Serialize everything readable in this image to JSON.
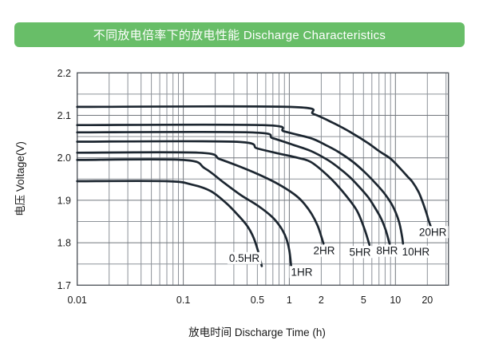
{
  "header": {
    "title": "不同放电倍率下的放电性能 Discharge Characteristics"
  },
  "chart_data": {
    "type": "line",
    "title": "不同放电倍率下的放电性能 Discharge Characteristics",
    "xlabel": "放电时间  Discharge Time (h)",
    "ylabel": "电压 Voltage(V)",
    "legend": "none (labels placed at curve ends)",
    "x_axis": {
      "scale": "log",
      "min": 0.01,
      "max": 31.62,
      "tick_labels": [
        {
          "v": 0.01,
          "t": "0.01"
        },
        {
          "v": 0.1,
          "t": "0.1"
        },
        {
          "v": 0.5,
          "t": "0.5"
        },
        {
          "v": 1,
          "t": "1"
        },
        {
          "v": 2,
          "t": "2"
        },
        {
          "v": 5,
          "t": "5"
        },
        {
          "v": 10,
          "t": "10"
        },
        {
          "v": 20,
          "t": "20"
        }
      ],
      "major_gridlines": [
        0.1,
        1,
        10
      ],
      "minor_gridlines": [
        0.02,
        0.03,
        0.04,
        0.05,
        0.06,
        0.07,
        0.08,
        0.09,
        0.2,
        0.3,
        0.4,
        0.5,
        0.6,
        0.7,
        0.8,
        0.9,
        2,
        3,
        4,
        5,
        6,
        7,
        8,
        9,
        20,
        30
      ]
    },
    "y_axis": {
      "scale": "linear",
      "min": 1.7,
      "max": 2.2,
      "tick_labels": [
        {
          "v": 2.2,
          "t": "2.2"
        },
        {
          "v": 2.1,
          "t": "2.1"
        },
        {
          "v": 2.0,
          "t": "2.0"
        },
        {
          "v": 1.9,
          "t": "1.9"
        },
        {
          "v": 1.8,
          "t": "1.8"
        },
        {
          "v": 1.7,
          "t": "1.7"
        }
      ],
      "major_gridlines": [
        1.8,
        1.9,
        2.0,
        2.1
      ],
      "minor_gridlines": [
        1.75,
        1.85,
        1.95,
        2.05,
        2.15
      ]
    },
    "series": [
      {
        "name": "0.5HR",
        "label": "0.5HR",
        "label_at": [
          0.376,
          1.764
        ],
        "points": [
          [
            0.01,
            1.945
          ],
          [
            0.07,
            1.945
          ],
          [
            0.12,
            1.937
          ],
          [
            0.18,
            1.922
          ],
          [
            0.25,
            1.895
          ],
          [
            0.32,
            1.868
          ],
          [
            0.4,
            1.84
          ],
          [
            0.46,
            1.812
          ],
          [
            0.51,
            1.778
          ],
          [
            0.55,
            1.745
          ]
        ]
      },
      {
        "name": "1HR",
        "label": "1HR",
        "label_at": [
          1.31,
          1.731
        ],
        "points": [
          [
            0.01,
            1.995
          ],
          [
            0.1,
            1.995
          ],
          [
            0.16,
            1.975
          ],
          [
            0.24,
            1.942
          ],
          [
            0.35,
            1.912
          ],
          [
            0.5,
            1.888
          ],
          [
            0.68,
            1.862
          ],
          [
            0.82,
            1.838
          ],
          [
            0.93,
            1.812
          ],
          [
            1.0,
            1.782
          ],
          [
            1.04,
            1.745
          ]
        ]
      },
      {
        "name": "2HR",
        "label": "2HR",
        "label_at": [
          2.13,
          1.781
        ],
        "points": [
          [
            0.01,
            2.012
          ],
          [
            0.14,
            2.012
          ],
          [
            0.22,
            1.997
          ],
          [
            0.32,
            1.982
          ],
          [
            0.5,
            1.962
          ],
          [
            0.76,
            1.94
          ],
          [
            1.1,
            1.915
          ],
          [
            1.35,
            1.895
          ],
          [
            1.62,
            1.868
          ],
          [
            1.85,
            1.84
          ],
          [
            2.0,
            1.815
          ],
          [
            2.1,
            1.798
          ]
        ]
      },
      {
        "name": "5HR",
        "label": "5HR",
        "label_at": [
          4.64,
          1.778
        ],
        "points": [
          [
            0.01,
            2.038
          ],
          [
            0.3,
            2.038
          ],
          [
            0.5,
            2.022
          ],
          [
            0.8,
            2.01
          ],
          [
            1.2,
            2.0
          ],
          [
            1.6,
            1.99
          ],
          [
            2.3,
            1.958
          ],
          [
            3.2,
            1.92
          ],
          [
            4.3,
            1.877
          ],
          [
            5.1,
            1.833
          ],
          [
            5.7,
            1.795
          ]
        ]
      },
      {
        "name": "8HR",
        "label": "8HR",
        "label_at": [
          8.36,
          1.781
        ],
        "points": [
          [
            0.01,
            2.06
          ],
          [
            0.42,
            2.06
          ],
          [
            0.7,
            2.046
          ],
          [
            1.1,
            2.03
          ],
          [
            1.6,
            2.016
          ],
          [
            2.3,
            1.995
          ],
          [
            2.9,
            1.977
          ],
          [
            3.7,
            1.955
          ],
          [
            4.5,
            1.933
          ],
          [
            5.5,
            1.908
          ],
          [
            6.4,
            1.883
          ],
          [
            7.3,
            1.858
          ],
          [
            8.1,
            1.83
          ],
          [
            8.8,
            1.798
          ]
        ]
      },
      {
        "name": "10HR",
        "label": "10HR",
        "label_at": [
          15.6,
          1.779
        ],
        "points": [
          [
            0.01,
            2.077
          ],
          [
            0.55,
            2.077
          ],
          [
            0.9,
            2.062
          ],
          [
            1.6,
            2.046
          ],
          [
            2.2,
            2.03
          ],
          [
            2.9,
            2.014
          ],
          [
            4.0,
            1.99
          ],
          [
            5.1,
            1.967
          ],
          [
            6.5,
            1.94
          ],
          [
            8.0,
            1.914
          ],
          [
            9.5,
            1.885
          ],
          [
            10.8,
            1.85
          ],
          [
            11.5,
            1.818
          ],
          [
            11.8,
            1.798
          ]
        ]
      },
      {
        "name": "20HR",
        "label": "20HR",
        "label_at": [
          22.5,
          1.825
        ],
        "points": [
          [
            0.01,
            2.12
          ],
          [
            1.0,
            2.12
          ],
          [
            1.7,
            2.103
          ],
          [
            2.6,
            2.082
          ],
          [
            3.8,
            2.06
          ],
          [
            5.5,
            2.035
          ],
          [
            7.0,
            2.016
          ],
          [
            9.0,
            1.998
          ],
          [
            11.0,
            1.976
          ],
          [
            13.0,
            1.956
          ],
          [
            14.5,
            1.943
          ],
          [
            16.5,
            1.92
          ],
          [
            18.0,
            1.897
          ],
          [
            19.5,
            1.872
          ],
          [
            20.7,
            1.85
          ],
          [
            21.6,
            1.838
          ]
        ]
      }
    ]
  },
  "colors": {
    "header_bg": "#68be68",
    "header_text": "#ffffff",
    "curve": "#1c2630",
    "grid_minor": "#8d9299",
    "grid_major": "#72777d",
    "frame": "#565b61",
    "text": "#1a1a1a",
    "background": "#ffffff"
  }
}
